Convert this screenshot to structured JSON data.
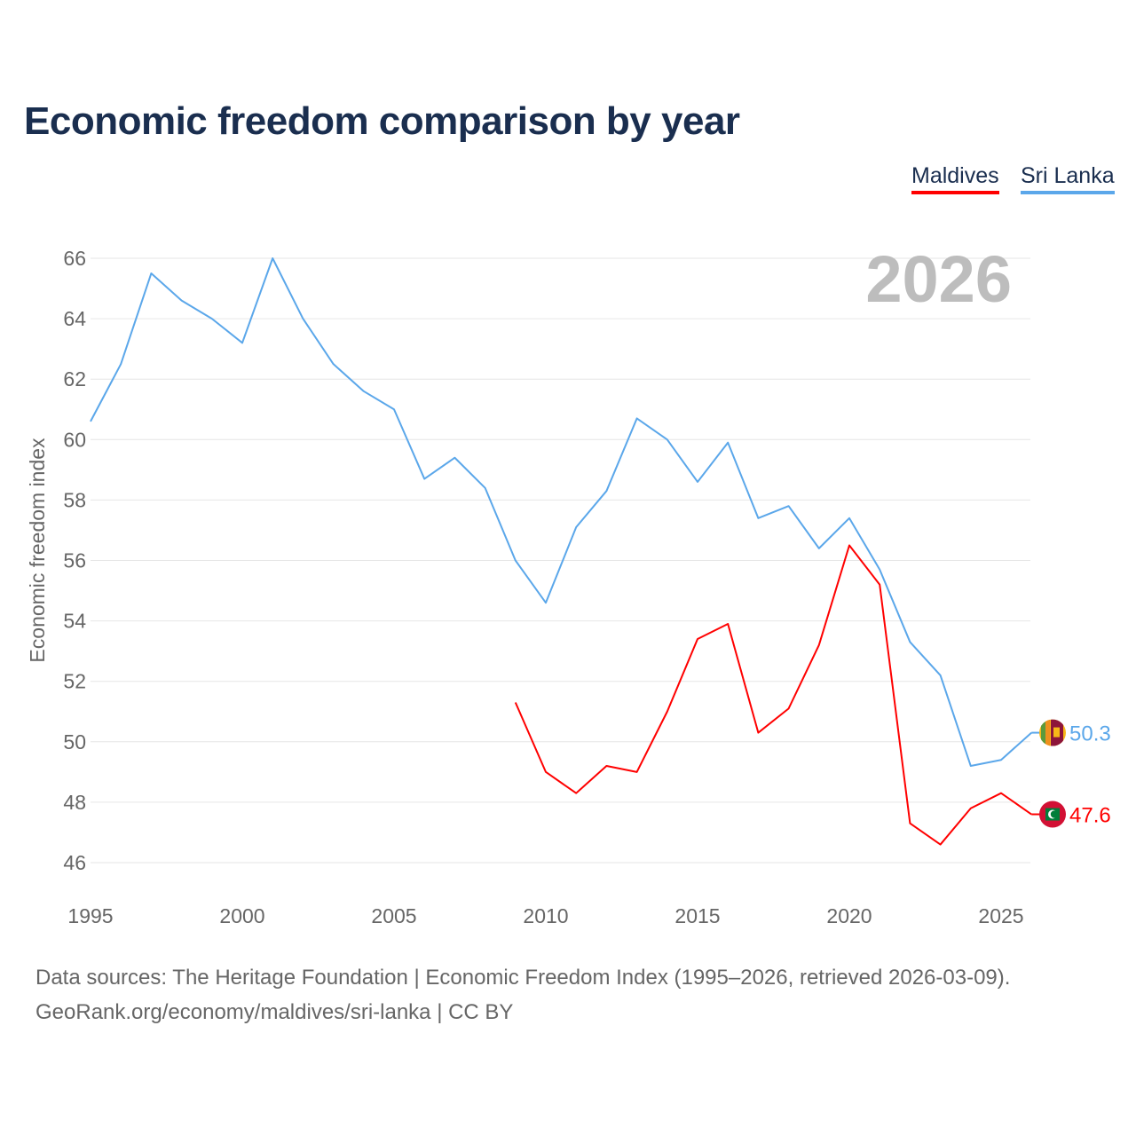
{
  "chart_data": {
    "type": "line",
    "title": "Economic freedom comparison by year",
    "xlabel": "",
    "ylabel": "Economic freedom index",
    "ylim": [
      46,
      66
    ],
    "xlim": [
      1995,
      2026
    ],
    "yticks": [
      46,
      48,
      50,
      52,
      54,
      56,
      58,
      60,
      62,
      64,
      66
    ],
    "xticks": [
      1995,
      2000,
      2005,
      2010,
      2015,
      2020,
      2025
    ],
    "grid": true,
    "legend_position": "top-right",
    "year_watermark": "2026",
    "series": [
      {
        "name": "Maldives",
        "color": "#ff0000",
        "end_label": "47.6",
        "flag": "maldives-flag",
        "x": [
          2009,
          2010,
          2011,
          2012,
          2013,
          2014,
          2015,
          2016,
          2017,
          2018,
          2019,
          2020,
          2021,
          2022,
          2023,
          2024,
          2025,
          2026
        ],
        "values": [
          51.3,
          49.0,
          48.3,
          49.2,
          49.0,
          51.0,
          53.4,
          53.9,
          50.3,
          51.1,
          53.2,
          56.5,
          55.2,
          47.3,
          46.6,
          47.8,
          48.3,
          47.6
        ]
      },
      {
        "name": "Sri Lanka",
        "color": "#5ba7ea",
        "end_label": "50.3",
        "flag": "sri-lanka-flag",
        "x": [
          1995,
          1996,
          1997,
          1998,
          1999,
          2000,
          2001,
          2002,
          2003,
          2004,
          2005,
          2006,
          2007,
          2008,
          2009,
          2010,
          2011,
          2012,
          2013,
          2014,
          2015,
          2016,
          2017,
          2018,
          2019,
          2020,
          2021,
          2022,
          2023,
          2024,
          2025,
          2026
        ],
        "values": [
          60.6,
          62.5,
          65.5,
          64.6,
          64.0,
          63.2,
          66.0,
          64.0,
          62.5,
          61.6,
          61.0,
          58.7,
          59.4,
          58.4,
          56.0,
          54.6,
          57.1,
          58.3,
          60.7,
          60.0,
          58.6,
          59.9,
          57.4,
          57.8,
          56.4,
          57.4,
          55.7,
          53.3,
          52.2,
          49.2,
          49.4,
          50.3
        ]
      }
    ]
  },
  "footer": {
    "line1": "Data sources: The Heritage Foundation | Economic Freedom Index (1995–2026, retrieved 2026-03-09).",
    "line2": "GeoRank.org/economy/maldives/sri-lanka | CC BY"
  }
}
